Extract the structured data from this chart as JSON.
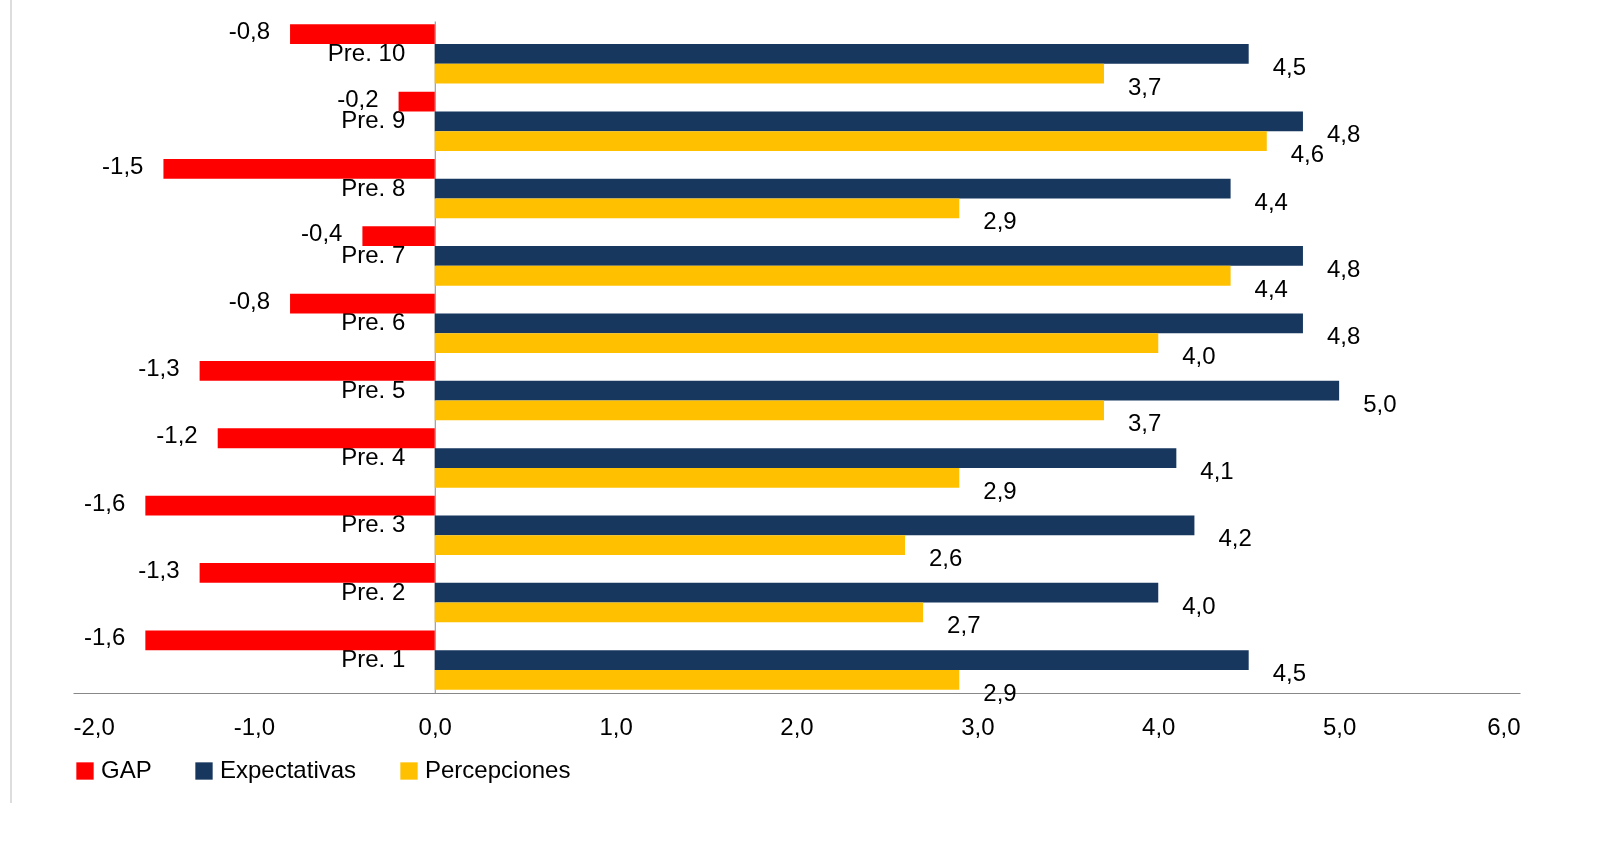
{
  "chart_data": {
    "type": "bar",
    "orientation": "horizontal",
    "categories": [
      "Pre. 10",
      "Pre. 9",
      "Pre. 8",
      "Pre. 7",
      "Pre. 6",
      "Pre. 5",
      "Pre. 4",
      "Pre. 3",
      "Pre. 2",
      "Pre. 1"
    ],
    "series": [
      {
        "name": "GAP",
        "color": "#ff0000",
        "values": [
          -0.8,
          -0.2,
          -1.5,
          -0.4,
          -0.8,
          -1.3,
          -1.2,
          -1.6,
          -1.3,
          -1.6
        ],
        "value_labels": [
          "-0,8",
          "-0,2",
          "-1,5",
          "-0,4",
          "-0,8",
          "-1,3",
          "-1,2",
          "-1,6",
          "-1,3",
          "-1,6"
        ]
      },
      {
        "name": "Expectativas",
        "color": "#17375e",
        "values": [
          4.5,
          4.8,
          4.4,
          4.8,
          4.8,
          5.0,
          4.1,
          4.2,
          4.0,
          4.5
        ],
        "value_labels": [
          "4,5",
          "4,8",
          "4,4",
          "4,8",
          "4,8",
          "5,0",
          "4,1",
          "4,2",
          "4,0",
          "4,5"
        ]
      },
      {
        "name": "Percepciones",
        "color": "#ffc000",
        "values": [
          3.7,
          4.6,
          2.9,
          4.4,
          4.0,
          3.7,
          2.9,
          2.6,
          2.7,
          2.9
        ],
        "value_labels": [
          "3,7",
          "4,6",
          "2,9",
          "4,4",
          "4,0",
          "3,7",
          "2,9",
          "2,6",
          "2,7",
          "2,9"
        ]
      }
    ],
    "xlim": [
      -2,
      6
    ],
    "xticks": [
      {
        "value": -2,
        "label": "-2,0"
      },
      {
        "value": -1,
        "label": "-1,0"
      },
      {
        "value": 0,
        "label": "0,0"
      },
      {
        "value": 1,
        "label": "1,0"
      },
      {
        "value": 2,
        "label": "2,0"
      },
      {
        "value": 3,
        "label": "3,0"
      },
      {
        "value": 4,
        "label": "4,0"
      },
      {
        "value": 5,
        "label": "5,0"
      },
      {
        "value": 6,
        "label": "6,0"
      }
    ],
    "grid": false,
    "legend": "bottom"
  }
}
